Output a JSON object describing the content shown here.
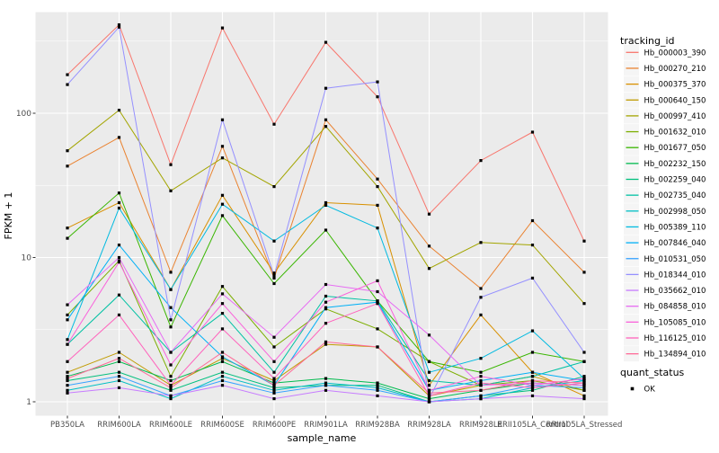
{
  "axes": {
    "y_label": "FPKM + 1",
    "x_label": "sample_name",
    "y_ticks": [
      {
        "label": "100",
        "value": 100
      },
      {
        "label": "10",
        "value": 10
      },
      {
        "label": "1",
        "value": 1
      }
    ]
  },
  "legend": {
    "color_title": "tracking_id",
    "shape_title": "quant_status",
    "shape_items": [
      {
        "label": "OK"
      }
    ]
  },
  "style": {
    "panel_bg": "#EBEBEB",
    "grid_color": "#FFFFFF",
    "tick_color": "#333333",
    "tick_label_color": "#4D4D4D",
    "text_color": "#000000",
    "marker_color": "#000000",
    "legend_key_bg": "#F5F5F5"
  },
  "chart_data": {
    "type": "line",
    "title": "",
    "xlabel": "sample_name",
    "ylabel": "FPKM + 1",
    "y_scale": "log10",
    "ylim": [
      0.79,
      500
    ],
    "grid": true,
    "legend_position": "right",
    "point_marker": "black-square",
    "quant_status": "OK",
    "categories": [
      "PB350LA",
      "RRIM600LA",
      "RRIM600LE",
      "RRIM600SE",
      "RRIM600PE",
      "RRIM901LA",
      "RRIM928BA",
      "RRIM928LA",
      "RRIM928LE",
      "RRII105LA_Control",
      "RRII105LA_Stressed"
    ],
    "series": [
      {
        "name": "Hb_000003_390",
        "color": "#F8766D",
        "values": [
          185,
          410,
          44,
          390,
          84,
          310,
          130,
          20,
          47,
          74,
          13
        ]
      },
      {
        "name": "Hb_000270_210",
        "color": "#EA8331",
        "values": [
          43,
          68,
          7.9,
          59,
          7.2,
          90,
          35,
          12,
          6.1,
          18,
          7.9
        ]
      },
      {
        "name": "Hb_000375_370",
        "color": "#D89000",
        "values": [
          16,
          24,
          6,
          27,
          7.8,
          24,
          23,
          1.3,
          4,
          1.6,
          1.1
        ]
      },
      {
        "name": "Hb_000640_150",
        "color": "#C09B00",
        "values": [
          1.6,
          2.2,
          1.3,
          2,
          1.4,
          2.5,
          2.4,
          1.1,
          1.3,
          1.5,
          1.2
        ]
      },
      {
        "name": "Hb_000997_410",
        "color": "#A3A500",
        "values": [
          55,
          105,
          29,
          49,
          31,
          81,
          31,
          8.4,
          12.7,
          12.2,
          4.8
        ]
      },
      {
        "name": "Hb_001632_010",
        "color": "#7CAE00",
        "values": [
          4,
          9.5,
          1.5,
          6.3,
          2.4,
          4.4,
          3.2,
          1.9,
          1.3,
          1.4,
          1.2
        ]
      },
      {
        "name": "Hb_001677_050",
        "color": "#39B600",
        "values": [
          13.6,
          28,
          3.3,
          19.5,
          6.6,
          15.5,
          5,
          1.9,
          1.6,
          2.2,
          1.9
        ]
      },
      {
        "name": "Hb_002232_150",
        "color": "#00BB4E",
        "values": [
          1.5,
          1.9,
          1.4,
          1.9,
          1.35,
          1.45,
          1.35,
          1.05,
          1.2,
          1.35,
          1.3
        ]
      },
      {
        "name": "Hb_002259_040",
        "color": "#00BF7D",
        "values": [
          1.4,
          1.6,
          1.2,
          1.6,
          1.25,
          1.3,
          1.3,
          1,
          1.1,
          1.2,
          1.5
        ]
      },
      {
        "name": "Hb_002735_040",
        "color": "#00C1A3",
        "values": [
          2.5,
          5.5,
          2.2,
          4.1,
          1.6,
          5.4,
          5,
          1.4,
          1.3,
          1.5,
          1.9
        ]
      },
      {
        "name": "Hb_002998_050",
        "color": "#00BFC4",
        "values": [
          1.2,
          1.4,
          1.05,
          1.5,
          1.2,
          1.35,
          1.25,
          1,
          1.05,
          1.25,
          1.4
        ]
      },
      {
        "name": "Hb_005389_110",
        "color": "#00BAE0",
        "values": [
          2.7,
          22,
          6,
          23.4,
          13,
          23,
          16,
          1.6,
          2,
          3.1,
          1.45
        ]
      },
      {
        "name": "Hb_007846_040",
        "color": "#00B0F6",
        "values": [
          3.7,
          12.2,
          4.5,
          2.05,
          1.3,
          4.5,
          4.9,
          1.2,
          1.4,
          1.6,
          1.4
        ]
      },
      {
        "name": "Hb_010531_050",
        "color": "#35A2FF",
        "values": [
          1.3,
          1.5,
          1.1,
          1.4,
          1.15,
          1.3,
          1.2,
          1,
          1.1,
          1.3,
          1.25
        ]
      },
      {
        "name": "Hb_018344_010",
        "color": "#9590FF",
        "values": [
          158,
          395,
          3.7,
          90,
          7.5,
          149,
          165,
          1.05,
          5.3,
          7.2,
          2.2
        ]
      },
      {
        "name": "Hb_035662_010",
        "color": "#C77CFF",
        "values": [
          1.15,
          1.25,
          1.1,
          1.3,
          1.05,
          1.2,
          1.1,
          1,
          1.05,
          1.1,
          1.05
        ]
      },
      {
        "name": "Hb_084858_010",
        "color": "#E76BF3",
        "values": [
          4.7,
          10,
          2.2,
          5.6,
          2.8,
          6.5,
          5.8,
          2.9,
          1.3,
          1.35,
          1.3
        ]
      },
      {
        "name": "Hb_105085_010",
        "color": "#FA62DB",
        "values": [
          2.5,
          9.3,
          1.8,
          4.8,
          1.9,
          4.9,
          6.9,
          1.2,
          1.5,
          1.3,
          1.45
        ]
      },
      {
        "name": "Hb_116125_010",
        "color": "#FF62BC",
        "values": [
          1.9,
          4,
          1.3,
          3.2,
          1.45,
          3.5,
          4.8,
          1.1,
          1.35,
          1.25,
          1.35
        ]
      },
      {
        "name": "Hb_134894_010",
        "color": "#FF6A98",
        "values": [
          1.45,
          2,
          1.25,
          2.2,
          1.3,
          2.6,
          2.4,
          1.15,
          1.2,
          1.4,
          1.35
        ]
      }
    ]
  }
}
